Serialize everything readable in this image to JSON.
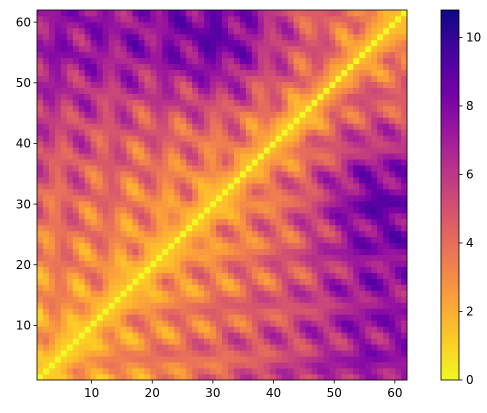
{
  "chart_data": {
    "type": "heatmap",
    "title": "",
    "xlabel": "",
    "ylabel": "",
    "n": 62,
    "xlim": [
      1,
      62
    ],
    "ylim": [
      1,
      62
    ],
    "x_ticks": [
      10,
      20,
      30,
      40,
      50,
      60
    ],
    "y_ticks": [
      10,
      20,
      30,
      40,
      50,
      60
    ],
    "x_tick_labels": [
      "10",
      "20",
      "30",
      "40",
      "50",
      "60"
    ],
    "y_tick_labels": [
      "10",
      "20",
      "30",
      "40",
      "50",
      "60"
    ],
    "symmetric": true,
    "diagonal_value": 0,
    "colormap": "plasma_r",
    "colorbar": {
      "vmin": 0,
      "vmax": 10.8,
      "ticks": [
        0,
        2,
        4,
        6,
        8,
        10
      ],
      "tick_labels": [
        "0",
        "2",
        "4",
        "6",
        "8",
        "10"
      ]
    },
    "colormap_stops": [
      "#f0f921",
      "#fdca26",
      "#fb9f3a",
      "#ed7953",
      "#d8576b",
      "#bd3786",
      "#9c179e",
      "#7201a8",
      "#46039f",
      "#0d0887"
    ],
    "approx_block_means": {
      "row_blocks": [
        "1-12",
        "13-24",
        "25-38",
        "39-48",
        "49-62"
      ],
      "col_blocks": [
        "1-12",
        "13-24",
        "25-38",
        "39-48",
        "49-62"
      ],
      "values": [
        [
          2.2,
          3.2,
          4.4,
          5.6,
          7.3
        ],
        [
          3.2,
          2.4,
          3.4,
          4.8,
          7.4
        ],
        [
          4.4,
          3.4,
          2.6,
          4.4,
          8.6
        ],
        [
          5.6,
          4.8,
          4.4,
          2.6,
          5.2
        ],
        [
          7.3,
          7.4,
          8.6,
          5.2,
          3.2
        ]
      ]
    }
  }
}
